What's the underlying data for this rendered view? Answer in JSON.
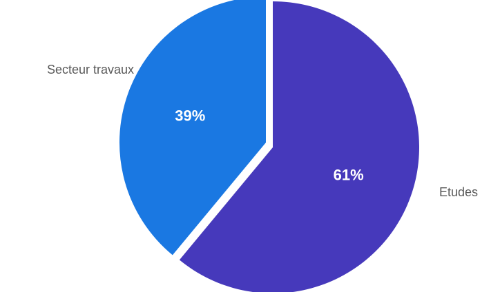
{
  "chart_data": {
    "type": "pie",
    "title": "",
    "slices": [
      {
        "label": "Etudes",
        "value": 61,
        "value_label": "61%",
        "color": "#4639bb"
      },
      {
        "label": "Secteur travaux",
        "value": 39,
        "value_label": "39%",
        "color": "#1a78e2"
      }
    ],
    "start": "12 o'clock",
    "direction": "clockwise",
    "exploded": true,
    "legend": "none"
  }
}
